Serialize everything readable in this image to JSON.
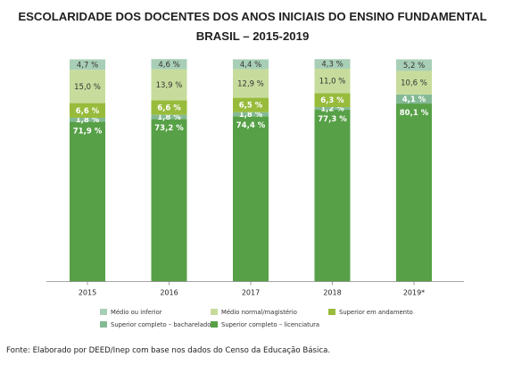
{
  "header": {
    "title": "ESCOLARIDADE DOS DOCENTES DOS ANOS INICIAIS DO ENSINO FUNDAMENTAL",
    "subtitle": "BRASIL – 2015-2019"
  },
  "source": "Fonte: Elaborado por DEED/Inep com base nos dados do Censo da Educação Básica.",
  "chart_data": {
    "type": "bar",
    "stacked": true,
    "categories": [
      "2015",
      "2016",
      "2017",
      "2018",
      "2019*"
    ],
    "ylim": [
      0,
      100
    ],
    "grid": false,
    "legend_position": "bottom",
    "series": [
      {
        "name": "Superior completo – licenciatura",
        "color": "#57a047",
        "label_color": "#ffffff",
        "values": [
          71.9,
          73.2,
          74.4,
          77.3,
          80.1
        ],
        "labels": [
          "71,9 %",
          "73,2 %",
          "74,4 %",
          "77,3 %",
          "80,1 %"
        ]
      },
      {
        "name": "Superior completo – bacharelado",
        "color": "#84b995",
        "label_color": "#ffffff",
        "values": [
          1.8,
          1.8,
          1.8,
          1.2,
          4.1
        ],
        "labels": [
          "1,8 %",
          "1,8 %",
          "1,8 %",
          "1,2 %",
          "4,1 %"
        ]
      },
      {
        "name": "Superior em andamento",
        "color": "#98bb3c",
        "label_color": "#ffffff",
        "values": [
          6.6,
          6.6,
          6.5,
          6.3,
          0
        ],
        "labels": [
          "6,6 %",
          "6,6 %",
          "6,5 %",
          "6,3 %",
          ""
        ]
      },
      {
        "name": "Médio normal/magistério",
        "color": "#c7dc9c",
        "label_color": "#333333",
        "values": [
          15.0,
          13.9,
          12.9,
          11.0,
          10.6
        ],
        "labels": [
          "15,0 %",
          "13,9 %",
          "12,9 %",
          "11,0 %",
          "10,6 %"
        ]
      },
      {
        "name": "Médio ou inferior",
        "color": "#a8cfb6",
        "label_color": "#333333",
        "values": [
          4.7,
          4.6,
          4.4,
          4.3,
          5.2
        ],
        "labels": [
          "4,7 %",
          "4,6 %",
          "4,4 %",
          "4,3 %",
          "5,2 %"
        ]
      }
    ],
    "legend": [
      {
        "name": "Médio ou inferior",
        "color": "#a8cfb6"
      },
      {
        "name": "Médio normal/magistério",
        "color": "#c7dc9c"
      },
      {
        "name": "Superior em andamento",
        "color": "#98bb3c"
      },
      {
        "name": "Superior completo – bacharelado",
        "color": "#84b995"
      },
      {
        "name": "Superior completo – licenciatura",
        "color": "#57a047"
      }
    ]
  }
}
